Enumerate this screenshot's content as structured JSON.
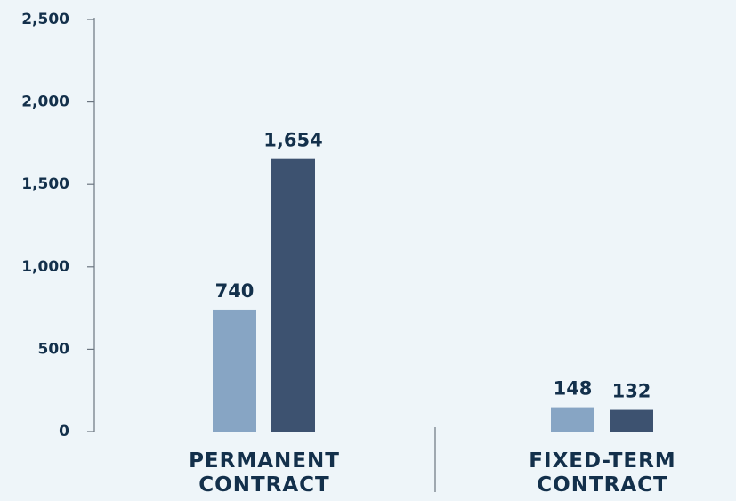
{
  "chart_data": {
    "type": "bar",
    "categories": [
      "PERMANENT CONTRACT",
      "FIXED-TERM CONTRACT"
    ],
    "series": [
      {
        "color": "#87a5c4",
        "values": [
          740,
          148
        ],
        "value_labels": [
          "740",
          "148"
        ]
      },
      {
        "color": "#3d5270",
        "values": [
          1654,
          132
        ],
        "value_labels": [
          "1,654",
          "132"
        ]
      }
    ],
    "ylim": [
      0,
      2500
    ],
    "yticks": [
      0,
      500,
      {
        "value": 1000,
        "label": "1,000"
      },
      {
        "value": 1500,
        "label": "1,500"
      },
      {
        "value": 2000,
        "label": "2,000"
      },
      {
        "value": 2500,
        "label": "2,500"
      }
    ],
    "grid": false
  }
}
